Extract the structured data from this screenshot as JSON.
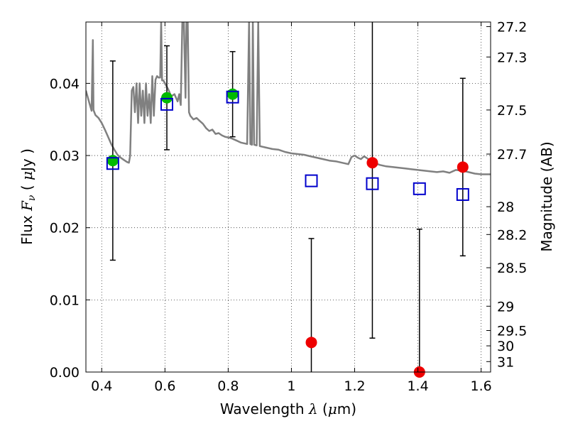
{
  "chart_data": {
    "type": "scatter",
    "xlabel": {
      "pre": "Wavelength  ",
      "sym": "λ",
      "post": " (",
      "mu": "μ",
      "unit": "m)"
    },
    "ylabel": {
      "pre": "Flux  ",
      "sym": "F",
      "sub": "ν",
      "post": "  ( ",
      "mu": "μ",
      "unit": "Jy )"
    },
    "y2label": "Magnitude (AB)",
    "xlim": [
      0.35,
      1.63
    ],
    "ylim": [
      0.0,
      0.0485
    ],
    "grid": true,
    "x_ticks": [
      0.4,
      0.6,
      0.8,
      1.0,
      1.2,
      1.4,
      1.6
    ],
    "x_tick_labels": [
      "0.4",
      "0.6",
      "0.8",
      "1",
      "1.2",
      "1.4",
      "1.6"
    ],
    "y_ticks": [
      0.0,
      0.01,
      0.02,
      0.03,
      0.04
    ],
    "y_tick_labels": [
      "0.00",
      "0.01",
      "0.02",
      "0.03",
      "0.04"
    ],
    "mag_ticks": [
      {
        "mag": 27.2,
        "label": "27.2"
      },
      {
        "mag": 27.3,
        "label": "27.3"
      },
      {
        "mag": 27.5,
        "label": "27.5"
      },
      {
        "mag": 27.7,
        "label": "27.7"
      },
      {
        "mag": 28.0,
        "label": "28"
      },
      {
        "mag": 28.2,
        "label": "28.2"
      },
      {
        "mag": 28.5,
        "label": "28.5"
      },
      {
        "mag": 29.0,
        "label": "29"
      },
      {
        "mag": 29.5,
        "label": "29.5"
      },
      {
        "mag": 30.0,
        "label": "30"
      },
      {
        "mag": 31.0,
        "label": "31"
      }
    ],
    "series": [
      {
        "marker": "circle",
        "color": "#00bb00",
        "points": [
          {
            "x": 0.435,
            "y": 0.0293,
            "err": 0.0138
          },
          {
            "x": 0.606,
            "y": 0.038,
            "err": 0.0072
          },
          {
            "x": 0.814,
            "y": 0.0385,
            "err": 0.0059
          }
        ]
      },
      {
        "marker": "circle",
        "color": "#ee0000",
        "points": [
          {
            "x": 1.063,
            "y": 0.0041,
            "err": 0.0144
          },
          {
            "x": 1.256,
            "y": 0.029,
            "err": 0.0243
          },
          {
            "x": 1.405,
            "y": 0.0,
            "err": 0.0198
          },
          {
            "x": 1.542,
            "y": 0.0284,
            "err": 0.0123
          }
        ]
      },
      {
        "marker": "square-open",
        "color": "#0000cc",
        "points": [
          {
            "x": 0.435,
            "y": 0.0289
          },
          {
            "x": 0.606,
            "y": 0.0371
          },
          {
            "x": 0.814,
            "y": 0.0381
          },
          {
            "x": 1.063,
            "y": 0.0265
          },
          {
            "x": 1.256,
            "y": 0.0261
          },
          {
            "x": 1.405,
            "y": 0.0254
          },
          {
            "x": 1.542,
            "y": 0.0246
          }
        ]
      }
    ],
    "model_spectrum": {
      "color": "#808080",
      "points": [
        [
          0.35,
          0.039
        ],
        [
          0.36,
          0.0374
        ],
        [
          0.368,
          0.0362
        ],
        [
          0.372,
          0.046
        ],
        [
          0.374,
          0.0363
        ],
        [
          0.38,
          0.0356
        ],
        [
          0.39,
          0.0352
        ],
        [
          0.4,
          0.0345
        ],
        [
          0.41,
          0.0336
        ],
        [
          0.42,
          0.0326
        ],
        [
          0.43,
          0.0316
        ],
        [
          0.44,
          0.0308
        ],
        [
          0.45,
          0.0301
        ],
        [
          0.46,
          0.0297
        ],
        [
          0.47,
          0.0294
        ],
        [
          0.48,
          0.0291
        ],
        [
          0.486,
          0.029
        ],
        [
          0.49,
          0.03
        ],
        [
          0.495,
          0.039
        ],
        [
          0.5,
          0.0395
        ],
        [
          0.505,
          0.036
        ],
        [
          0.51,
          0.04
        ],
        [
          0.515,
          0.0345
        ],
        [
          0.52,
          0.04
        ],
        [
          0.525,
          0.0355
        ],
        [
          0.53,
          0.039
        ],
        [
          0.535,
          0.0345
        ],
        [
          0.54,
          0.04
        ],
        [
          0.545,
          0.0355
        ],
        [
          0.55,
          0.0385
        ],
        [
          0.555,
          0.0345
        ],
        [
          0.56,
          0.041
        ],
        [
          0.565,
          0.0355
        ],
        [
          0.57,
          0.0405
        ],
        [
          0.575,
          0.041
        ],
        [
          0.58,
          0.0408
        ],
        [
          0.585,
          0.0408
        ],
        [
          0.588,
          0.0485
        ],
        [
          0.591,
          0.0404
        ],
        [
          0.595,
          0.0404
        ],
        [
          0.6,
          0.04
        ],
        [
          0.61,
          0.0392
        ],
        [
          0.62,
          0.0382
        ],
        [
          0.63,
          0.0385
        ],
        [
          0.64,
          0.0375
        ],
        [
          0.645,
          0.0385
        ],
        [
          0.65,
          0.037
        ],
        [
          0.655,
          0.0485
        ],
        [
          0.66,
          0.0485
        ],
        [
          0.665,
          0.038
        ],
        [
          0.668,
          0.0485
        ],
        [
          0.672,
          0.0485
        ],
        [
          0.676,
          0.036
        ],
        [
          0.68,
          0.0355
        ],
        [
          0.69,
          0.035
        ],
        [
          0.7,
          0.0352
        ],
        [
          0.71,
          0.0348
        ],
        [
          0.72,
          0.0344
        ],
        [
          0.73,
          0.0338
        ],
        [
          0.74,
          0.0334
        ],
        [
          0.75,
          0.0336
        ],
        [
          0.76,
          0.033
        ],
        [
          0.77,
          0.0331
        ],
        [
          0.78,
          0.0328
        ],
        [
          0.79,
          0.0326
        ],
        [
          0.8,
          0.0325
        ],
        [
          0.81,
          0.0324
        ],
        [
          0.82,
          0.0322
        ],
        [
          0.83,
          0.032
        ],
        [
          0.84,
          0.0318
        ],
        [
          0.85,
          0.0317
        ],
        [
          0.86,
          0.0316
        ],
        [
          0.866,
          0.0485
        ],
        [
          0.87,
          0.0316
        ],
        [
          0.875,
          0.0315
        ],
        [
          0.878,
          0.0485
        ],
        [
          0.882,
          0.0315
        ],
        [
          0.89,
          0.0314
        ],
        [
          0.895,
          0.0485
        ],
        [
          0.9,
          0.0313
        ],
        [
          0.92,
          0.0311
        ],
        [
          0.94,
          0.0309
        ],
        [
          0.96,
          0.0308
        ],
        [
          0.98,
          0.0305
        ],
        [
          1.0,
          0.0303
        ],
        [
          1.02,
          0.0302
        ],
        [
          1.04,
          0.0301
        ],
        [
          1.06,
          0.0299
        ],
        [
          1.08,
          0.0297
        ],
        [
          1.1,
          0.0295
        ],
        [
          1.12,
          0.0293
        ],
        [
          1.14,
          0.0292
        ],
        [
          1.16,
          0.029
        ],
        [
          1.18,
          0.0288
        ],
        [
          1.19,
          0.0298
        ],
        [
          1.2,
          0.03
        ],
        [
          1.21,
          0.0297
        ],
        [
          1.22,
          0.0295
        ],
        [
          1.23,
          0.0299
        ],
        [
          1.24,
          0.0296
        ],
        [
          1.26,
          0.029
        ],
        [
          1.28,
          0.0287
        ],
        [
          1.3,
          0.0285
        ],
        [
          1.32,
          0.0284
        ],
        [
          1.34,
          0.0283
        ],
        [
          1.36,
          0.0282
        ],
        [
          1.38,
          0.0281
        ],
        [
          1.4,
          0.028
        ],
        [
          1.42,
          0.0279
        ],
        [
          1.44,
          0.0278
        ],
        [
          1.46,
          0.0277
        ],
        [
          1.48,
          0.0278
        ],
        [
          1.5,
          0.0276
        ],
        [
          1.52,
          0.028
        ],
        [
          1.54,
          0.0279
        ],
        [
          1.56,
          0.0277
        ],
        [
          1.58,
          0.0275
        ],
        [
          1.6,
          0.0274
        ],
        [
          1.63,
          0.0274
        ]
      ]
    }
  }
}
